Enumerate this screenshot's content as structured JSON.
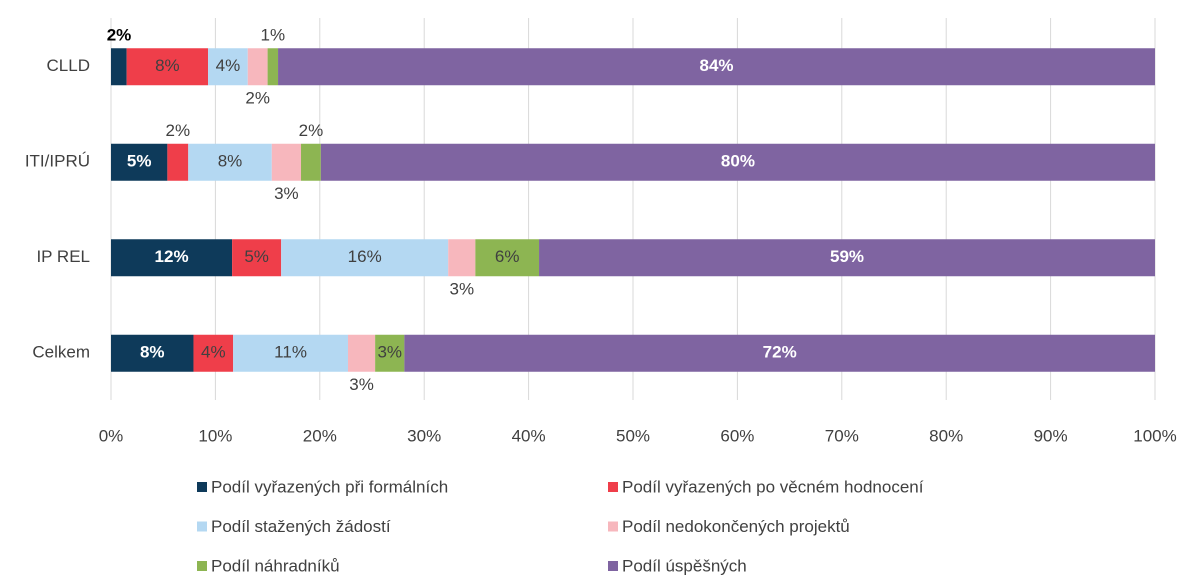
{
  "chart_data": {
    "type": "stacked-bar-horizontal",
    "categories": [
      "CLLD",
      "ITI/IPRÚ",
      "IP REL",
      "Celkem"
    ],
    "series": [
      {
        "name": "Podíl vyřazených při formálních",
        "color": "#0e3a5a",
        "values": [
          1.5,
          5.4,
          11.6,
          7.9
        ],
        "value_labels": [
          "2%",
          "5%",
          "12%",
          "8%"
        ]
      },
      {
        "name": "Podíl vyřazených po věcném hodnocení",
        "color": "#ef3e4a",
        "values": [
          7.8,
          2.0,
          4.7,
          3.8
        ],
        "value_labels": [
          "8%",
          "2%",
          "5%",
          "4%"
        ]
      },
      {
        "name": "Podíl stažených žádostí",
        "color": "#b4d8f2",
        "values": [
          3.8,
          8.0,
          16.0,
          11.0
        ],
        "value_labels": [
          "4%",
          "8%",
          "16%",
          "11%"
        ]
      },
      {
        "name": "Podíl nedokončených projektů",
        "color": "#f7b7bd",
        "values": [
          1.9,
          2.8,
          2.6,
          2.6
        ],
        "value_labels": [
          "2%",
          "3%",
          "3%",
          "3%"
        ]
      },
      {
        "name": "Podíl náhradníků",
        "color": "#8db552",
        "values": [
          1.0,
          1.9,
          6.1,
          2.8
        ],
        "value_labels": [
          "1%",
          "2%",
          "6%",
          "3%"
        ]
      },
      {
        "name": "Podíl úspěšných",
        "color": "#7f64a1",
        "values": [
          84.0,
          79.9,
          59.0,
          71.9
        ],
        "value_labels": [
          "84%",
          "80%",
          "59%",
          "72%"
        ]
      }
    ],
    "xlim": [
      0,
      100
    ],
    "xticks": [
      {
        "value": 0,
        "label": "0%"
      },
      {
        "value": 10,
        "label": "10%"
      },
      {
        "value": 20,
        "label": "20%"
      },
      {
        "value": 30,
        "label": "30%"
      },
      {
        "value": 40,
        "label": "40%"
      },
      {
        "value": 50,
        "label": "50%"
      },
      {
        "value": 60,
        "label": "60%"
      },
      {
        "value": 70,
        "label": "70%"
      },
      {
        "value": 80,
        "label": "80%"
      },
      {
        "value": 90,
        "label": "90%"
      },
      {
        "value": 100,
        "label": "100%"
      }
    ],
    "grid": true,
    "legend": "bottom"
  }
}
